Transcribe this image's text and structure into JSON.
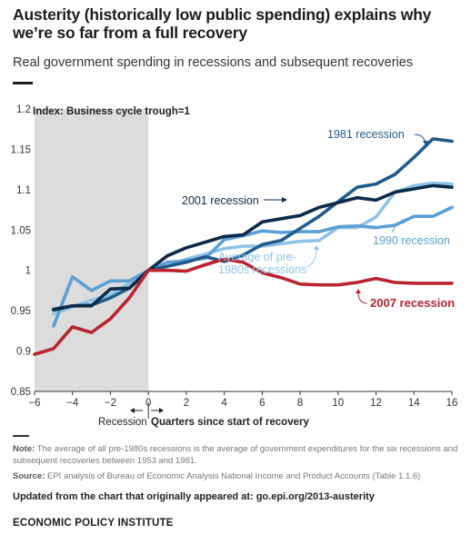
{
  "title": "Austerity (historically low public spending) explains why we’re so far from a full recovery",
  "subtitle": "Real government spending in recessions and subsequent recoveries",
  "chart_data": {
    "type": "line",
    "ylabel": "Index: Business cycle trough=1",
    "xlabel": "Quarters since start of recovery",
    "xlabel_left": "Recession",
    "xlim": [
      -6,
      16
    ],
    "ylim": [
      0.85,
      1.2
    ],
    "xticks": [
      "−6",
      "−4",
      "−2",
      "0",
      "2",
      "4",
      "6",
      "8",
      "10",
      "12",
      "14",
      "16"
    ],
    "yticks": [
      "0.85",
      "0.9",
      "0.95",
      "1",
      "1.05",
      "1.1",
      "1.15",
      "1.2"
    ],
    "recession_shading": [
      -6,
      0
    ],
    "grid": false,
    "series": [
      {
        "name": "1981 recession",
        "color": "#1f5b8c",
        "x": [
          -5,
          -4,
          -3,
          -2,
          -1,
          0,
          1,
          2,
          3,
          4,
          5,
          6,
          7,
          8,
          9,
          10,
          11,
          12,
          13,
          14,
          15,
          16
        ],
        "values": [
          0.952,
          0.956,
          0.957,
          0.966,
          0.978,
          1.0,
          1.005,
          1.01,
          1.017,
          1.011,
          1.019,
          1.032,
          1.037,
          1.052,
          1.067,
          1.085,
          1.103,
          1.107,
          1.119,
          1.14,
          1.163,
          1.16
        ]
      },
      {
        "name": "2001 recession",
        "color": "#0d2a48",
        "x": [
          -5,
          -4,
          -3,
          -2,
          -1,
          0,
          1,
          2,
          3,
          4,
          5,
          6,
          7,
          8,
          9,
          10,
          11,
          12,
          13,
          14,
          15,
          16
        ],
        "values": [
          0.951,
          0.956,
          0.956,
          0.977,
          0.978,
          1.0,
          1.018,
          1.028,
          1.035,
          1.042,
          1.044,
          1.06,
          1.064,
          1.068,
          1.078,
          1.084,
          1.09,
          1.087,
          1.097,
          1.101,
          1.105,
          1.103
        ]
      },
      {
        "name": "1990 recession",
        "color": "#5b9fd4",
        "x": [
          -5,
          -4,
          -3,
          -2,
          -1,
          0,
          1,
          2,
          3,
          4,
          5,
          6,
          7,
          8,
          9,
          10,
          11,
          12,
          13,
          14,
          15,
          16
        ],
        "values": [
          0.931,
          0.992,
          0.975,
          0.987,
          0.987,
          1.0,
          1.01,
          1.012,
          1.015,
          1.038,
          1.043,
          1.049,
          1.047,
          1.048,
          1.048,
          1.054,
          1.055,
          1.053,
          1.056,
          1.067,
          1.067,
          1.078
        ]
      },
      {
        "name": "Average of pre-1980s recessions",
        "color": "#8ec3e8",
        "x": [
          -5,
          -4,
          -3,
          -2,
          -1,
          0,
          1,
          2,
          3,
          4,
          5,
          6,
          7,
          8,
          9,
          10,
          11,
          12,
          13,
          14,
          15,
          16
        ],
        "values": [
          0.946,
          0.955,
          0.963,
          0.97,
          0.984,
          1.0,
          1.005,
          1.014,
          1.02,
          1.027,
          1.03,
          1.03,
          1.033,
          1.036,
          1.037,
          1.053,
          1.053,
          1.066,
          1.097,
          1.105,
          1.108,
          1.107
        ]
      },
      {
        "name": "2007 recession",
        "color": "#b8242f",
        "x": [
          -6,
          -5,
          -4,
          -3,
          -2,
          -1,
          0,
          1,
          2,
          3,
          4,
          5,
          6,
          7,
          8,
          9,
          10,
          11,
          12,
          13,
          14,
          15,
          16
        ],
        "values": [
          0.896,
          0.903,
          0.93,
          0.923,
          0.94,
          0.966,
          1.0,
          1.0,
          0.999,
          1.007,
          1.014,
          1.01,
          0.997,
          0.991,
          0.983,
          0.982,
          0.982,
          0.985,
          0.99,
          0.985,
          0.984,
          0.984,
          0.984
        ]
      }
    ]
  },
  "note_label": "Note:",
  "note_text": " The average of all pre-1980s recessions is the average of government expenditures for the six recessions and subsequent recoveries between 1953 and 1981.",
  "source_label": "Source:",
  "source_text": " EPI analysis of Bureau of Economic Analysis National Income and Product Accounts (Table 1.1.6)",
  "updated": "Updated from the chart that originally appeared at: go.epi.org/2013-austerity",
  "publisher": "ECONOMIC POLICY INSTITUTE"
}
